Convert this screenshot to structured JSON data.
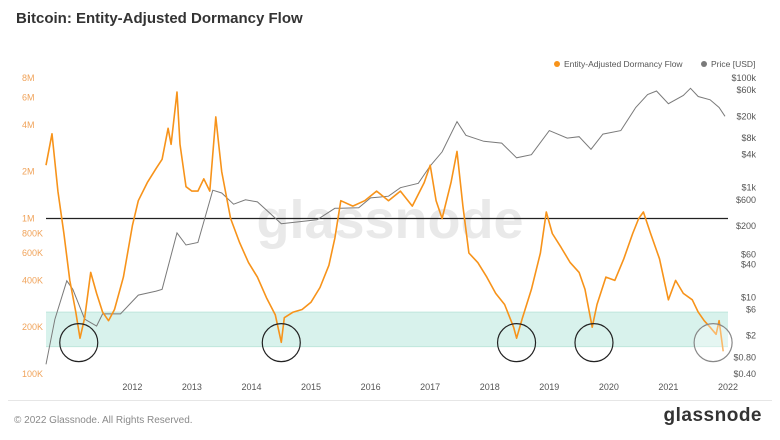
{
  "title": "Bitcoin: Entity-Adjusted Dormancy Flow",
  "footer": {
    "copyright": "© 2022 Glassnode. All Rights Reserved.",
    "logo": "glassnode"
  },
  "watermark": "glassnode",
  "colors": {
    "dormancy": "#f7931a",
    "price": "#7a7a7a",
    "band": "#d8f2ec",
    "left_axis_text": "#f0a35a",
    "right_axis_text": "#555555"
  },
  "chart_data": {
    "type": "line",
    "title": "Bitcoin: Entity-Adjusted Dormancy Flow",
    "legend": {
      "placement": "top-right",
      "entries": [
        "Entity-Adjusted Dormancy Flow",
        "Price [USD]"
      ]
    },
    "x_ticks": [
      "2012",
      "2013",
      "2014",
      "2015",
      "2016",
      "2017",
      "2018",
      "2019",
      "2020",
      "2021",
      "2022"
    ],
    "x_range": [
      2011.05,
      2022.5
    ],
    "y_left": {
      "scale": "log",
      "range": [
        100000,
        8000000
      ],
      "ticks": [
        "100K",
        "200K",
        "400K",
        "600K",
        "800K",
        "1M",
        "2M",
        "4M",
        "6M",
        "8M"
      ],
      "tick_values": [
        100000,
        200000,
        400000,
        600000,
        800000,
        1000000,
        2000000,
        4000000,
        6000000,
        8000000
      ]
    },
    "y_right": {
      "scale": "log",
      "range": [
        0.4,
        100000
      ],
      "ticks": [
        "$0.40",
        "$0.80",
        "$2",
        "$6",
        "$10",
        "$40",
        "$60",
        "$200",
        "$600",
        "$1k",
        "$4k",
        "$8k",
        "$20k",
        "$60k",
        "$100k"
      ],
      "tick_values": [
        0.4,
        0.8,
        2,
        6,
        10,
        40,
        60,
        200,
        600,
        1000,
        4000,
        8000,
        20000,
        60000,
        100000
      ]
    },
    "horizontal_line": 1000000,
    "band": [
      150000,
      250000
    ],
    "highlight_years": [
      2011.6,
      2015.0,
      2018.95,
      2020.25,
      2022.25
    ],
    "series": [
      {
        "name": "Entity-Adjusted Dormancy Flow",
        "axis": "left",
        "points": [
          [
            2011.05,
            2200000
          ],
          [
            2011.15,
            3500000
          ],
          [
            2011.25,
            1500000
          ],
          [
            2011.35,
            800000
          ],
          [
            2011.45,
            400000
          ],
          [
            2011.55,
            250000
          ],
          [
            2011.62,
            170000
          ],
          [
            2011.7,
            230000
          ],
          [
            2011.8,
            450000
          ],
          [
            2011.9,
            330000
          ],
          [
            2012.0,
            250000
          ],
          [
            2012.1,
            220000
          ],
          [
            2012.2,
            260000
          ],
          [
            2012.35,
            420000
          ],
          [
            2012.5,
            900000
          ],
          [
            2012.6,
            1300000
          ],
          [
            2012.75,
            1700000
          ],
          [
            2012.9,
            2100000
          ],
          [
            2013.0,
            2400000
          ],
          [
            2013.1,
            3800000
          ],
          [
            2013.15,
            3000000
          ],
          [
            2013.25,
            6500000
          ],
          [
            2013.3,
            3000000
          ],
          [
            2013.4,
            1600000
          ],
          [
            2013.5,
            1500000
          ],
          [
            2013.6,
            1500000
          ],
          [
            2013.7,
            1800000
          ],
          [
            2013.8,
            1500000
          ],
          [
            2013.9,
            4500000
          ],
          [
            2013.95,
            3000000
          ],
          [
            2014.0,
            2000000
          ],
          [
            2014.15,
            1000000
          ],
          [
            2014.3,
            700000
          ],
          [
            2014.45,
            520000
          ],
          [
            2014.6,
            420000
          ],
          [
            2014.75,
            310000
          ],
          [
            2014.9,
            240000
          ],
          [
            2015.0,
            160000
          ],
          [
            2015.05,
            230000
          ],
          [
            2015.2,
            250000
          ],
          [
            2015.35,
            260000
          ],
          [
            2015.5,
            290000
          ],
          [
            2015.65,
            360000
          ],
          [
            2015.8,
            500000
          ],
          [
            2015.9,
            750000
          ],
          [
            2016.0,
            1300000
          ],
          [
            2016.2,
            1200000
          ],
          [
            2016.4,
            1300000
          ],
          [
            2016.6,
            1500000
          ],
          [
            2016.8,
            1300000
          ],
          [
            2017.0,
            1500000
          ],
          [
            2017.2,
            1200000
          ],
          [
            2017.4,
            1700000
          ],
          [
            2017.5,
            2200000
          ],
          [
            2017.6,
            1300000
          ],
          [
            2017.7,
            1000000
          ],
          [
            2017.85,
            1700000
          ],
          [
            2017.95,
            2700000
          ],
          [
            2018.05,
            1200000
          ],
          [
            2018.15,
            600000
          ],
          [
            2018.3,
            520000
          ],
          [
            2018.45,
            420000
          ],
          [
            2018.6,
            330000
          ],
          [
            2018.75,
            280000
          ],
          [
            2018.9,
            200000
          ],
          [
            2018.95,
            170000
          ],
          [
            2019.05,
            230000
          ],
          [
            2019.2,
            350000
          ],
          [
            2019.35,
            600000
          ],
          [
            2019.45,
            1100000
          ],
          [
            2019.55,
            800000
          ],
          [
            2019.7,
            650000
          ],
          [
            2019.85,
            520000
          ],
          [
            2020.0,
            450000
          ],
          [
            2020.1,
            350000
          ],
          [
            2020.22,
            200000
          ],
          [
            2020.3,
            280000
          ],
          [
            2020.45,
            420000
          ],
          [
            2020.6,
            400000
          ],
          [
            2020.75,
            550000
          ],
          [
            2020.9,
            800000
          ],
          [
            2021.0,
            1000000
          ],
          [
            2021.08,
            1100000
          ],
          [
            2021.2,
            800000
          ],
          [
            2021.35,
            550000
          ],
          [
            2021.5,
            300000
          ],
          [
            2021.62,
            400000
          ],
          [
            2021.75,
            330000
          ],
          [
            2021.9,
            300000
          ],
          [
            2022.0,
            250000
          ],
          [
            2022.1,
            220000
          ],
          [
            2022.2,
            200000
          ],
          [
            2022.3,
            180000
          ],
          [
            2022.35,
            220000
          ],
          [
            2022.42,
            140000
          ]
        ]
      },
      {
        "name": "Price [USD]",
        "axis": "right",
        "points": [
          [
            2011.05,
            0.6
          ],
          [
            2011.2,
            4
          ],
          [
            2011.4,
            20
          ],
          [
            2011.5,
            14
          ],
          [
            2011.7,
            4
          ],
          [
            2011.9,
            3
          ],
          [
            2012.0,
            5
          ],
          [
            2012.3,
            5
          ],
          [
            2012.6,
            11
          ],
          [
            2012.9,
            13
          ],
          [
            2013.0,
            14
          ],
          [
            2013.25,
            150
          ],
          [
            2013.4,
            90
          ],
          [
            2013.6,
            100
          ],
          [
            2013.85,
            900
          ],
          [
            2014.0,
            800
          ],
          [
            2014.2,
            500
          ],
          [
            2014.4,
            600
          ],
          [
            2014.6,
            550
          ],
          [
            2014.8,
            350
          ],
          [
            2015.0,
            220
          ],
          [
            2015.3,
            240
          ],
          [
            2015.6,
            260
          ],
          [
            2015.9,
            420
          ],
          [
            2016.0,
            420
          ],
          [
            2016.3,
            430
          ],
          [
            2016.5,
            650
          ],
          [
            2016.8,
            700
          ],
          [
            2017.0,
            1000
          ],
          [
            2017.3,
            1200
          ],
          [
            2017.5,
            2500
          ],
          [
            2017.7,
            4500
          ],
          [
            2017.95,
            16000
          ],
          [
            2018.1,
            9000
          ],
          [
            2018.4,
            7000
          ],
          [
            2018.7,
            6500
          ],
          [
            2018.95,
            3500
          ],
          [
            2019.2,
            4000
          ],
          [
            2019.5,
            11000
          ],
          [
            2019.8,
            8000
          ],
          [
            2020.0,
            8500
          ],
          [
            2020.2,
            5000
          ],
          [
            2020.4,
            9500
          ],
          [
            2020.7,
            11000
          ],
          [
            2020.95,
            29000
          ],
          [
            2021.15,
            50000
          ],
          [
            2021.3,
            58000
          ],
          [
            2021.5,
            34000
          ],
          [
            2021.75,
            48000
          ],
          [
            2021.87,
            65000
          ],
          [
            2022.0,
            46000
          ],
          [
            2022.2,
            40000
          ],
          [
            2022.35,
            29000
          ],
          [
            2022.45,
            20000
          ]
        ]
      }
    ]
  }
}
